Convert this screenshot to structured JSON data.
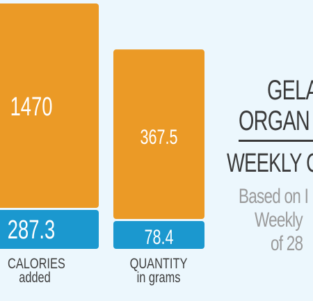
{
  "chart_data": {
    "type": "bar",
    "stacked": true,
    "categories": [
      {
        "line1": "CALORIES",
        "line2": "added"
      },
      {
        "line1": "QUANTITY",
        "line2": "in grams"
      }
    ],
    "series": [
      {
        "values": [
          287.3,
          78.4
        ],
        "labels": [
          "287.3",
          "78.4"
        ],
        "color": "#1b98cf"
      },
      {
        "values": [
          1470,
          367.5
        ],
        "labels": [
          "1470",
          "367.5"
        ],
        "color": "#eb9a26"
      }
    ]
  },
  "heading": {
    "line1": "GELA",
    "line2": "ORGAN",
    "line3": "WEEKLY C"
  },
  "subheading": {
    "line1": "Based on I",
    "line2": "Weekly",
    "line3": "of 28"
  }
}
